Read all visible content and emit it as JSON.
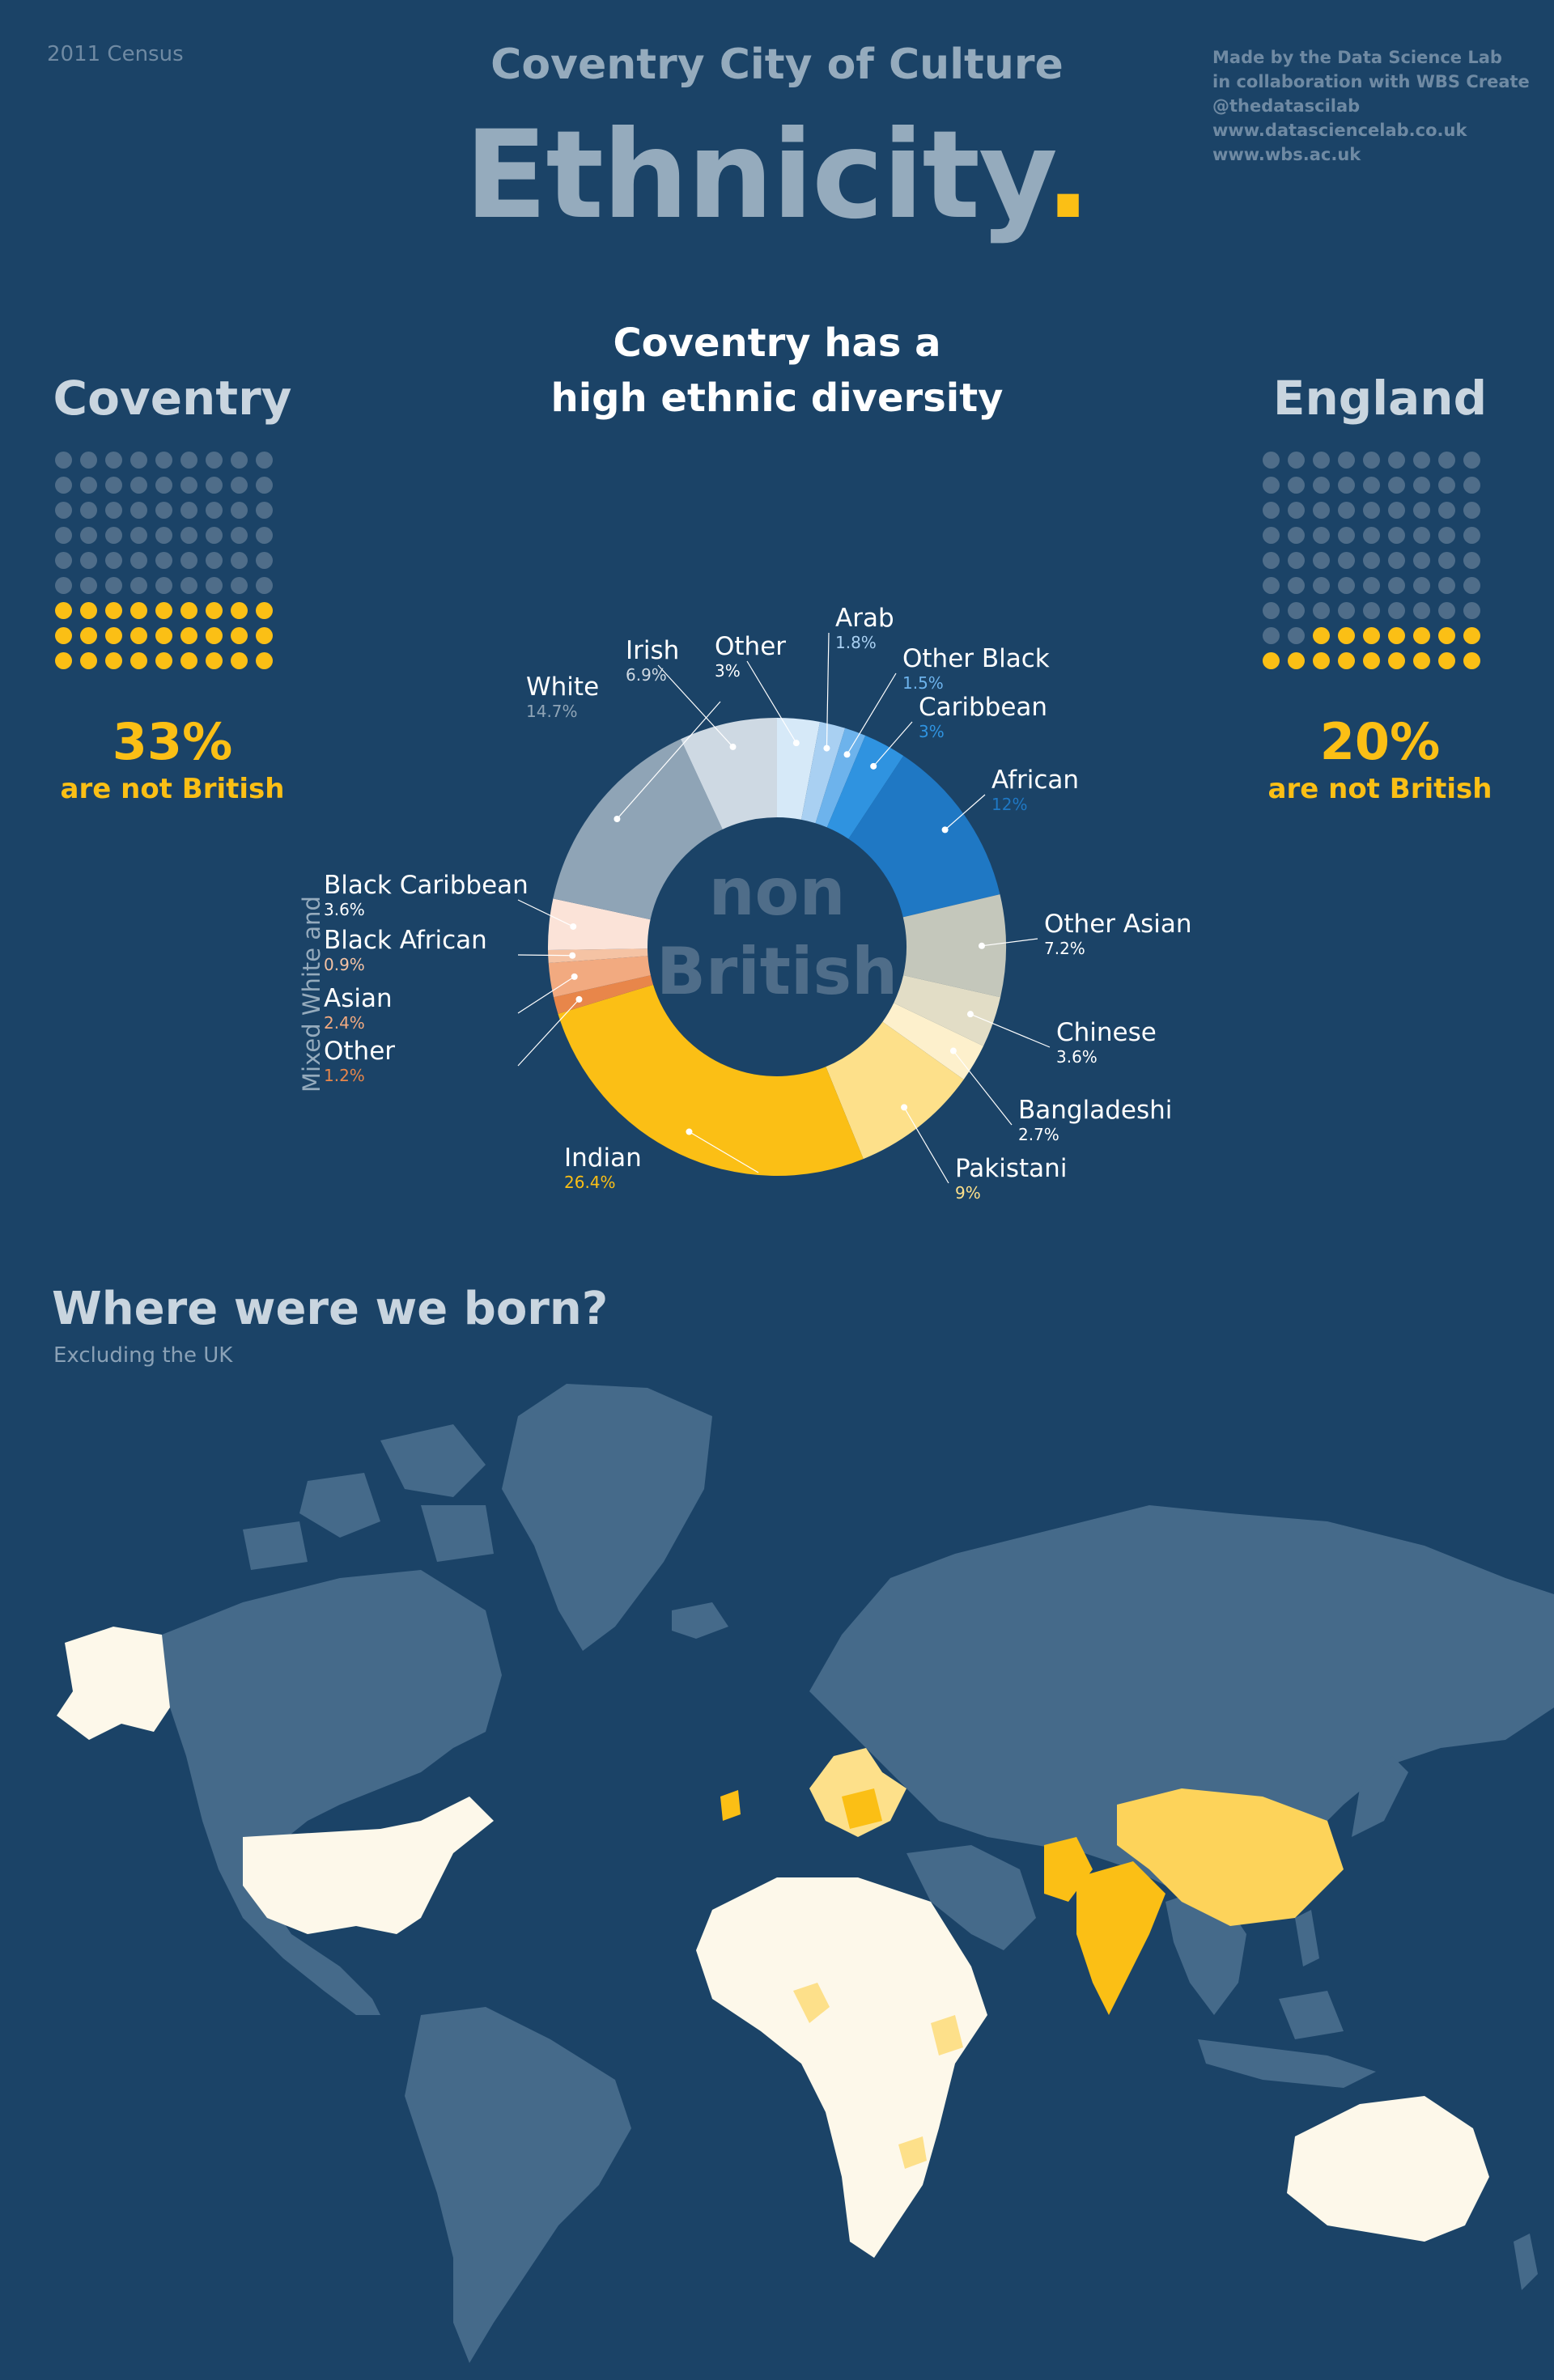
{
  "header": {
    "census": "2011 Census",
    "credits": [
      "Made by the Data Science Lab",
      "in collaboration with WBS Create",
      "@thedatascilab",
      "www.datasciencelab.co.uk",
      "www.wbs.ac.uk"
    ],
    "subtitle": "Coventry City of Culture",
    "title": "Ethnicity",
    "title_dot": ".",
    "headline_line1": "Coventry has a",
    "headline_line2": "high ethnic diversity"
  },
  "coventry": {
    "title": "Coventry",
    "percent": "33%",
    "label": "are not British",
    "share": 0.33
  },
  "england": {
    "title": "England",
    "percent": "20%",
    "label": "are not British",
    "share": 0.2
  },
  "donut_center": [
    "non",
    "British"
  ],
  "mixed_group_label": "Mixed White and",
  "colors": {
    "background": "#1b4367",
    "accent": "#fbbf15",
    "muted": "#95abbd"
  },
  "chart_data": {
    "type": "pie",
    "title": "Coventry has a high ethnic diversity",
    "slices": [
      {
        "name": "Other",
        "value": "3%",
        "pct": 3.0,
        "color": "#d6e9f8",
        "label_color": "#ffffff"
      },
      {
        "name": "Arab",
        "value": "1.8%",
        "pct": 1.8,
        "color": "#a9d0f2",
        "label_color": "#a9d0f2"
      },
      {
        "name": "Other Black",
        "value": "1.5%",
        "pct": 1.5,
        "color": "#6db3ec",
        "label_color": "#6db3ec"
      },
      {
        "name": "Caribbean",
        "value": "3%",
        "pct": 3.0,
        "color": "#2f93e0",
        "label_color": "#2f93e0"
      },
      {
        "name": "African",
        "value": "12%",
        "pct": 12.0,
        "color": "#1f78c4",
        "label_color": "#1f78c4"
      },
      {
        "name": "Other Asian",
        "value": "7.2%",
        "pct": 7.2,
        "color": "#c4c7bb",
        "label_color": "#ffffff"
      },
      {
        "name": "Chinese",
        "value": "3.6%",
        "pct": 3.6,
        "color": "#e2ddc6",
        "label_color": "#ffffff"
      },
      {
        "name": "Bangladeshi",
        "value": "2.7%",
        "pct": 2.7,
        "color": "#fdf0cc",
        "label_color": "#ffffff"
      },
      {
        "name": "Pakistani",
        "value": "9%",
        "pct": 9.0,
        "color": "#fde08a",
        "label_color": "#fde08a"
      },
      {
        "name": "Indian",
        "value": "26.4%",
        "pct": 26.4,
        "color": "#fbbf15",
        "label_color": "#fbbf15"
      },
      {
        "name": "Other",
        "value": "1.2%",
        "pct": 1.2,
        "color": "#e8864a",
        "label_color": "#e8864a"
      },
      {
        "name": "Asian",
        "value": "2.4%",
        "pct": 2.4,
        "color": "#f2aa80",
        "label_color": "#f2aa80"
      },
      {
        "name": "Black African",
        "value": "0.9%",
        "pct": 0.9,
        "color": "#f5c3a4",
        "label_color": "#f5c3a4"
      },
      {
        "name": "Black Caribbean",
        "value": "3.6%",
        "pct": 3.6,
        "color": "#fbe3d8",
        "label_color": "#ffffff"
      },
      {
        "name": "White",
        "value": "14.7%",
        "pct": 14.7,
        "color": "#8fa4b6",
        "label_color": "#8fa4b6"
      },
      {
        "name": "Irish",
        "value": "6.9%",
        "pct": 6.9,
        "color": "#ced9e3",
        "label_color": "#ced9e3"
      }
    ]
  },
  "map": {
    "title": "Where were we born?",
    "subtitle": "Excluding the UK"
  }
}
